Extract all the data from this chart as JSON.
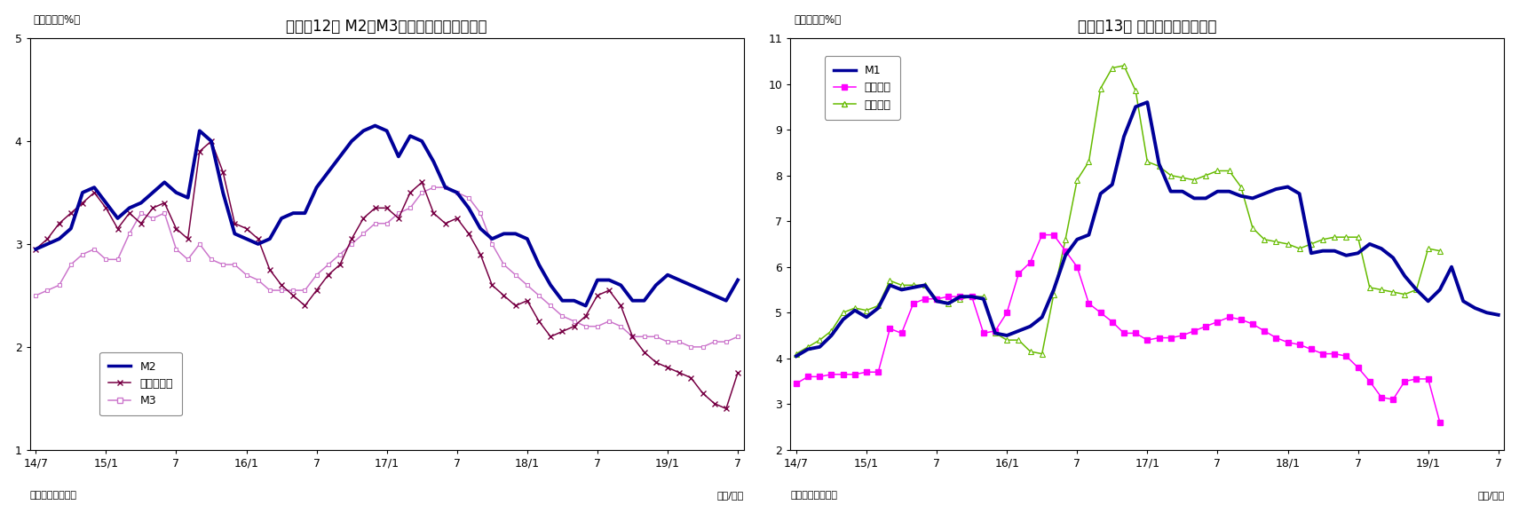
{
  "chart1": {
    "title": "（図表12） M2、M3、広義流動性の伸び率",
    "ylabel_note": "（前年比、%）",
    "source": "（資料）日本銀行",
    "year_month": "（年/月）",
    "ylim": [
      1,
      5
    ],
    "yticks": [
      1,
      2,
      3,
      4,
      5
    ],
    "xtick_labels": [
      "14/7",
      "15/1",
      "7",
      "16/1",
      "7",
      "17/1",
      "7",
      "18/1",
      "7",
      "19/1",
      "7"
    ],
    "M2": [
      2.95,
      3.0,
      3.05,
      3.15,
      3.5,
      3.55,
      3.4,
      3.25,
      3.35,
      3.4,
      3.5,
      3.6,
      3.5,
      3.45,
      4.1,
      4.0,
      3.5,
      3.1,
      3.05,
      3.0,
      3.05,
      3.25,
      3.3,
      3.3,
      3.55,
      3.7,
      3.85,
      4.0,
      4.1,
      4.15,
      4.1,
      3.85,
      4.05,
      4.0,
      3.8,
      3.55,
      3.5,
      3.35,
      3.15,
      3.05,
      3.1,
      3.1,
      3.05,
      2.8,
      2.6,
      2.45,
      2.45,
      2.4,
      2.65,
      2.65,
      2.6,
      2.45,
      2.45,
      2.6,
      2.7,
      2.65,
      2.6,
      2.55,
      2.5,
      2.45,
      2.65
    ],
    "Kouki": [
      2.95,
      3.05,
      3.2,
      3.3,
      3.4,
      3.5,
      3.35,
      3.15,
      3.3,
      3.2,
      3.35,
      3.4,
      3.15,
      3.05,
      3.9,
      4.0,
      3.7,
      3.2,
      3.15,
      3.05,
      2.75,
      2.6,
      2.5,
      2.4,
      2.55,
      2.7,
      2.8,
      3.05,
      3.25,
      3.35,
      3.35,
      3.25,
      3.5,
      3.6,
      3.3,
      3.2,
      3.25,
      3.1,
      2.9,
      2.6,
      2.5,
      2.4,
      2.45,
      2.25,
      2.1,
      2.15,
      2.2,
      2.3,
      2.5,
      2.55,
      2.4,
      2.1,
      1.95,
      1.85,
      1.8,
      1.75,
      1.7,
      1.55,
      1.45,
      1.4,
      1.75
    ],
    "M3": [
      2.5,
      2.55,
      2.6,
      2.8,
      2.9,
      2.95,
      2.85,
      2.85,
      3.1,
      3.3,
      3.25,
      3.3,
      2.95,
      2.85,
      3.0,
      2.85,
      2.8,
      2.8,
      2.7,
      2.65,
      2.55,
      2.55,
      2.55,
      2.55,
      2.7,
      2.8,
      2.9,
      3.0,
      3.1,
      3.2,
      3.2,
      3.3,
      3.35,
      3.5,
      3.55,
      3.55,
      3.5,
      3.45,
      3.3,
      3.0,
      2.8,
      2.7,
      2.6,
      2.5,
      2.4,
      2.3,
      2.25,
      2.2,
      2.2,
      2.25,
      2.2,
      2.1,
      2.1,
      2.1,
      2.05,
      2.05,
      2.0,
      2.0,
      2.05,
      2.05,
      2.1
    ],
    "legend_M2": "M2",
    "legend_kouki": "広義流動性",
    "legend_M3": "M3"
  },
  "chart2": {
    "title": "（図表13） 現金・領金の伸び率",
    "ylabel_note": "（前年比、%）",
    "source": "（資料）日本銀行",
    "year_month": "（年/月）",
    "ylim": [
      2,
      11
    ],
    "yticks": [
      2,
      3,
      4,
      5,
      6,
      7,
      8,
      9,
      10,
      11
    ],
    "xtick_labels": [
      "14/7",
      "15/1",
      "7",
      "16/1",
      "7",
      "17/1",
      "7",
      "18/1",
      "7",
      "19/1",
      "7"
    ],
    "M1": [
      4.05,
      4.2,
      4.25,
      4.5,
      4.85,
      5.05,
      4.9,
      5.1,
      5.6,
      5.5,
      5.55,
      5.6,
      5.25,
      5.2,
      5.35,
      5.35,
      5.3,
      4.55,
      4.5,
      4.6,
      4.7,
      4.9,
      5.5,
      6.25,
      6.6,
      6.7,
      7.6,
      7.8,
      8.85,
      9.5,
      9.6,
      8.25,
      7.65,
      7.65,
      7.5,
      7.5,
      7.65,
      7.65,
      7.55,
      7.5,
      7.6,
      7.7,
      7.75,
      7.6,
      6.3,
      6.35,
      6.35,
      6.25,
      6.3,
      6.5,
      6.4,
      6.2,
      5.8,
      5.5,
      5.25,
      5.5,
      6.0,
      5.25,
      5.1,
      5.0,
      4.95
    ],
    "Genkin": [
      3.45,
      3.6,
      3.6,
      3.65,
      3.65,
      3.65,
      3.7,
      3.7,
      4.65,
      4.55,
      5.2,
      5.3,
      5.3,
      5.35,
      5.35,
      5.35,
      4.55,
      4.6,
      5.0,
      5.85,
      6.1,
      6.7,
      6.7,
      6.35,
      6.0,
      5.2,
      5.0,
      4.8,
      4.55,
      4.55,
      4.4,
      4.45,
      4.45,
      4.5,
      4.6,
      4.7,
      4.8,
      4.9,
      4.85,
      4.75,
      4.6,
      4.45,
      4.35,
      4.3,
      4.2,
      4.1,
      4.1,
      4.05,
      3.8,
      3.5,
      3.15,
      3.1,
      3.5,
      3.55,
      3.55,
      2.6
    ],
    "Yokin": [
      4.1,
      4.25,
      4.4,
      4.6,
      5.0,
      5.1,
      5.05,
      5.15,
      5.7,
      5.6,
      5.6,
      5.6,
      5.3,
      5.2,
      5.3,
      5.35,
      5.35,
      4.55,
      4.4,
      4.4,
      4.15,
      4.1,
      5.4,
      6.6,
      7.9,
      8.3,
      9.9,
      10.35,
      10.4,
      9.85,
      8.3,
      8.2,
      8.0,
      7.95,
      7.9,
      8.0,
      8.1,
      8.1,
      7.75,
      6.85,
      6.6,
      6.55,
      6.5,
      6.4,
      6.5,
      6.6,
      6.65,
      6.65,
      6.65,
      5.55,
      5.5,
      5.45,
      5.4,
      5.5,
      6.4,
      6.35
    ],
    "legend_M1": "M1",
    "legend_genkin": "現金通貨",
    "legend_yokin": "領金通貨"
  }
}
